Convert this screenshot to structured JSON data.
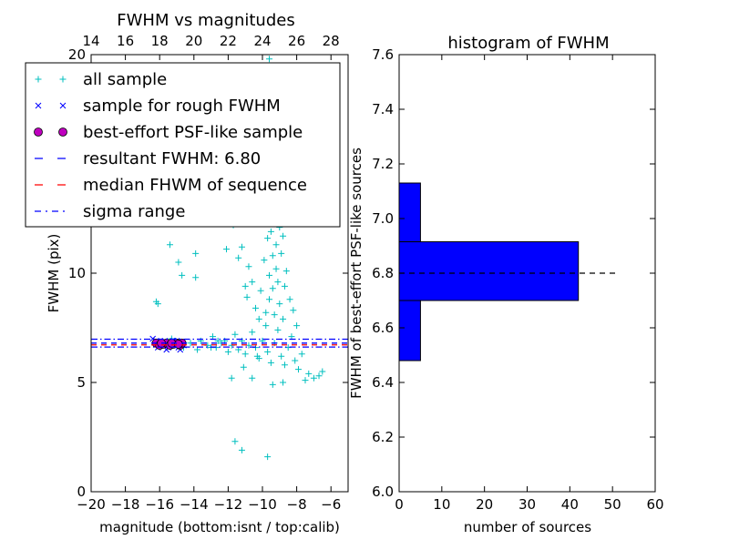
{
  "chart_data": [
    {
      "type": "scatter",
      "title": "FWHM vs magnitudes",
      "xlabel": "magnitude (bottom:isnt / top:calib)",
      "ylabel": "FWHM (pix)",
      "xlim": [
        -20,
        -5
      ],
      "ylim": [
        0,
        20
      ],
      "x_ticks": [
        "−20",
        "−18",
        "−16",
        "−14",
        "−12",
        "−10",
        "−8",
        "−6"
      ],
      "x_tick_values": [
        -20,
        -18,
        -16,
        -14,
        -12,
        -10,
        -8,
        -6
      ],
      "top_ticks": [
        "14",
        "16",
        "18",
        "20",
        "22",
        "24",
        "26",
        "28"
      ],
      "top_tick_values": [
        14,
        16,
        18,
        20,
        22,
        24,
        26,
        28
      ],
      "top_offset": 34,
      "y_ticks": [
        "0",
        "5",
        "10",
        "20"
      ],
      "y_tick_values": [
        0,
        5,
        10,
        20
      ],
      "legend": {
        "position": "top-left",
        "entries": [
          {
            "marker": "+",
            "label": "all sample",
            "color": "#00bfbf"
          },
          {
            "marker": "x",
            "label": "sample for rough FWHM",
            "color": "#0000ff"
          },
          {
            "marker": "o",
            "label": "best-effort PSF-like sample",
            "color": "#bf00bf"
          },
          {
            "marker": "dash",
            "label": "resultant FWHM: 6.80",
            "color": "#0000ff"
          },
          {
            "marker": "dash",
            "label": "median FHWM of sequence",
            "color": "#ff0000"
          },
          {
            "marker": "dashdot",
            "label": "sigma range",
            "color": "#0000ff"
          }
        ]
      },
      "hlines": {
        "resultant": 6.8,
        "median": 6.72,
        "sigma": [
          6.62,
          6.98
        ]
      },
      "all_sample": [
        [
          -16.2,
          8.7
        ],
        [
          -16.1,
          8.6
        ],
        [
          -15.4,
          11.3
        ],
        [
          -14.9,
          10.5
        ],
        [
          -14.7,
          9.9
        ],
        [
          -13.9,
          10.9
        ],
        [
          -13.9,
          9.8
        ],
        [
          -12.6,
          12.4
        ],
        [
          -12.1,
          11.1
        ],
        [
          -11.7,
          12.2
        ],
        [
          -11.4,
          10.7
        ],
        [
          -11.2,
          11.2
        ],
        [
          -11.0,
          9.4
        ],
        [
          -10.9,
          8.9
        ],
        [
          -10.8,
          10.3
        ],
        [
          -10.6,
          9.6
        ],
        [
          -10.4,
          8.4
        ],
        [
          -10.2,
          7.9
        ],
        [
          -10.1,
          9.2
        ],
        [
          -9.9,
          10.6
        ],
        [
          -9.8,
          8.2
        ],
        [
          -9.7,
          11.6
        ],
        [
          -9.6,
          9.9
        ],
        [
          -9.6,
          8.8
        ],
        [
          -9.5,
          12.8
        ],
        [
          -9.5,
          11.9
        ],
        [
          -9.4,
          10.8
        ],
        [
          -9.4,
          9.3
        ],
        [
          -9.3,
          12.4
        ],
        [
          -9.3,
          8.1
        ],
        [
          -9.2,
          11.3
        ],
        [
          -9.2,
          10.2
        ],
        [
          -9.1,
          13.5
        ],
        [
          -9.1,
          9.6
        ],
        [
          -9.0,
          12.1
        ],
        [
          -9.0,
          8.6
        ],
        [
          -8.9,
          10.9
        ],
        [
          -8.8,
          11.7
        ],
        [
          -8.8,
          7.9
        ],
        [
          -8.7,
          9.4
        ],
        [
          -8.6,
          10.1
        ],
        [
          -8.4,
          8.8
        ],
        [
          -8.2,
          8.3
        ],
        [
          -8.0,
          7.6
        ],
        [
          -9.6,
          19.8
        ],
        [
          -9.4,
          19.4
        ],
        [
          -9.8,
          17.6
        ],
        [
          -9.3,
          16.8
        ],
        [
          -9.7,
          15.2
        ],
        [
          -9.2,
          14.6
        ],
        [
          -15.3,
          7.0
        ],
        [
          -15.1,
          6.9
        ],
        [
          -14.6,
          6.6
        ],
        [
          -14.2,
          6.8
        ],
        [
          -13.8,
          6.5
        ],
        [
          -13.6,
          6.9
        ],
        [
          -13.2,
          6.7
        ],
        [
          -12.9,
          7.1
        ],
        [
          -12.7,
          6.6
        ],
        [
          -12.4,
          6.8
        ],
        [
          -12.2,
          6.9
        ],
        [
          -12.0,
          6.4
        ],
        [
          -11.8,
          6.7
        ],
        [
          -11.6,
          7.2
        ],
        [
          -11.4,
          6.5
        ],
        [
          -11.2,
          6.9
        ],
        [
          -11.0,
          6.3
        ],
        [
          -10.8,
          6.7
        ],
        [
          -10.6,
          7.3
        ],
        [
          -10.4,
          6.6
        ],
        [
          -10.2,
          6.1
        ],
        [
          -10.0,
          6.9
        ],
        [
          -9.8,
          7.6
        ],
        [
          -9.7,
          6.4
        ],
        [
          -9.5,
          5.9
        ],
        [
          -9.3,
          6.8
        ],
        [
          -9.1,
          7.4
        ],
        [
          -8.9,
          6.2
        ],
        [
          -8.7,
          5.8
        ],
        [
          -8.5,
          6.6
        ],
        [
          -8.3,
          7.1
        ],
        [
          -8.1,
          6.0
        ],
        [
          -7.9,
          5.6
        ],
        [
          -7.7,
          6.3
        ],
        [
          -7.5,
          5.1
        ],
        [
          -7.3,
          5.4
        ],
        [
          -7.0,
          5.2
        ],
        [
          -6.7,
          5.3
        ],
        [
          -6.5,
          5.5
        ],
        [
          -8.8,
          5.0
        ],
        [
          -9.4,
          4.9
        ],
        [
          -10.6,
          5.2
        ],
        [
          -11.1,
          5.7
        ],
        [
          -11.8,
          5.2
        ],
        [
          -11.6,
          2.3
        ],
        [
          -11.2,
          1.9
        ],
        [
          -9.7,
          1.6
        ],
        [
          -10.3,
          6.2
        ],
        [
          -12.6,
          6.9
        ],
        [
          -13.0,
          6.6
        ]
      ],
      "rough_sample": [
        [
          -16.4,
          7.0
        ],
        [
          -16.2,
          6.9
        ],
        [
          -16.0,
          6.8
        ],
        [
          -15.8,
          6.7
        ],
        [
          -15.7,
          6.9
        ],
        [
          -15.5,
          6.6
        ],
        [
          -15.3,
          6.8
        ],
        [
          -15.1,
          6.7
        ],
        [
          -15.0,
          6.9
        ],
        [
          -14.9,
          6.6
        ],
        [
          -14.8,
          6.5
        ],
        [
          -14.7,
          6.8
        ],
        [
          -14.6,
          6.7
        ],
        [
          -16.1,
          6.6
        ],
        [
          -15.6,
          6.5
        ],
        [
          -15.2,
          6.9
        ]
      ],
      "psf_sample": [
        [
          -16.2,
          6.8
        ],
        [
          -16.0,
          6.7
        ],
        [
          -15.8,
          6.75
        ],
        [
          -15.6,
          6.8
        ],
        [
          -15.4,
          6.7
        ],
        [
          -15.2,
          6.75
        ],
        [
          -15.0,
          6.8
        ],
        [
          -14.8,
          6.7
        ],
        [
          -14.7,
          6.8
        ],
        [
          -15.9,
          6.8
        ],
        [
          -15.3,
          6.8
        ],
        [
          -14.9,
          6.75
        ]
      ]
    },
    {
      "type": "bar",
      "orientation": "horizontal",
      "title": "histogram of FWHM",
      "xlabel": "number of sources",
      "ylabel": "FWHM of best-effort PSF-like sources",
      "xlim": [
        0,
        60
      ],
      "ylim": [
        6.0,
        7.6
      ],
      "x_ticks": [
        "0",
        "10",
        "20",
        "30",
        "40",
        "50",
        "60"
      ],
      "x_tick_values": [
        0,
        10,
        20,
        30,
        40,
        50,
        60
      ],
      "y_ticks": [
        "6.0",
        "6.2",
        "6.4",
        "6.6",
        "6.8",
        "7.0",
        "7.2",
        "7.4",
        "7.6"
      ],
      "y_tick_values": [
        6.0,
        6.2,
        6.4,
        6.6,
        6.8,
        7.0,
        7.2,
        7.4,
        7.6
      ],
      "bins": [
        {
          "low": 6.48,
          "high": 6.7,
          "count": 5
        },
        {
          "low": 6.7,
          "high": 6.915,
          "count": 42
        },
        {
          "low": 6.915,
          "high": 7.13,
          "count": 5
        }
      ],
      "bar_color": "#0000ff",
      "reference_line": {
        "y": 6.8,
        "x_end": 51,
        "color": "#000000"
      }
    }
  ]
}
